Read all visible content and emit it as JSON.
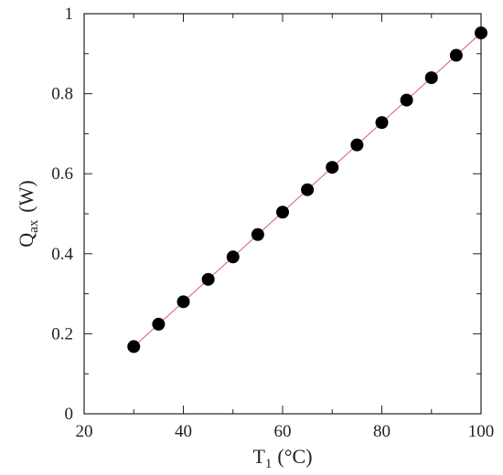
{
  "chart_data": {
    "type": "scatter",
    "xlim": [
      20,
      100
    ],
    "ylim": [
      0,
      1
    ],
    "xticks": [
      "20",
      "40",
      "60",
      "80",
      "100"
    ],
    "yticks": [
      "0",
      "0.2",
      "0.4",
      "0.6",
      "0.8",
      "1"
    ],
    "xlabel": {
      "main": "T",
      "sub": "1",
      "unit": "(°C)"
    },
    "ylabel": {
      "main": "Q",
      "sub": "ax",
      "unit": "(W)"
    },
    "grid": false,
    "line_color": "#d9777f",
    "marker_color": "#000000",
    "series": [
      {
        "x": [
          30,
          35,
          40,
          45,
          50,
          55,
          60,
          65,
          70,
          75,
          80,
          85,
          90,
          95,
          100
        ],
        "y": [
          0.168,
          0.224,
          0.28,
          0.336,
          0.392,
          0.448,
          0.504,
          0.56,
          0.616,
          0.672,
          0.728,
          0.784,
          0.84,
          0.896,
          0.952
        ]
      }
    ]
  }
}
